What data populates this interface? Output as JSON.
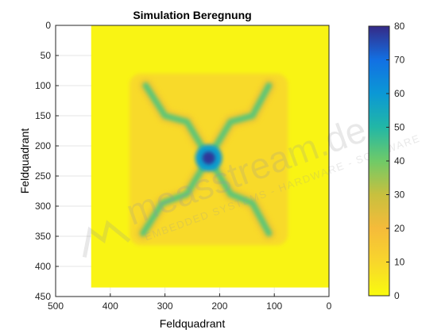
{
  "chart_data": {
    "type": "heatmap",
    "title": "Simulation Beregnung",
    "xlabel": "Feldquadrant",
    "ylabel": "Feldquadrant",
    "xlim": [
      500,
      0
    ],
    "ylim": [
      450,
      0
    ],
    "x_reversed": true,
    "y_reversed": true,
    "x_ticks": [
      500,
      400,
      300,
      200,
      100,
      0
    ],
    "y_ticks": [
      0,
      50,
      100,
      150,
      200,
      250,
      300,
      350,
      400,
      450
    ],
    "grid": true,
    "colormap": "parula",
    "colorbar": {
      "min": 0,
      "max": 80,
      "ticks": [
        0,
        10,
        20,
        30,
        40,
        50,
        60,
        70,
        80
      ]
    },
    "regions": [
      {
        "name": "",
        "x_range": [
          0,
          435
        ],
        "y_range": [
          0,
          435
        ],
        "value": 2
      },
      {
        "name": "",
        "x_range": [
          75,
          365
        ],
        "y_range": [
          80,
          365
        ],
        "value": 9
      }
    ],
    "peak": {
      "x": 220,
      "y": 220,
      "value": 78
    },
    "arms": [
      {
        "points": [
          [
            220,
            220
          ],
          [
            260,
            160
          ],
          [
            300,
            150
          ],
          [
            335,
            100
          ]
        ],
        "value": 42
      },
      {
        "points": [
          [
            220,
            220
          ],
          [
            180,
            160
          ],
          [
            140,
            150
          ],
          [
            110,
            100
          ]
        ],
        "value": 42
      },
      {
        "points": [
          [
            220,
            220
          ],
          [
            260,
            280
          ],
          [
            305,
            295
          ],
          [
            340,
            345
          ]
        ],
        "value": 42
      },
      {
        "points": [
          [
            220,
            220
          ],
          [
            180,
            280
          ],
          [
            140,
            295
          ],
          [
            110,
            345
          ]
        ],
        "value": 42
      }
    ],
    "watermark": {
      "brand": "measstream.de",
      "tagline": "EMBEDDED SYSTEMS - HARDWARE - SOFTWARE"
    }
  }
}
